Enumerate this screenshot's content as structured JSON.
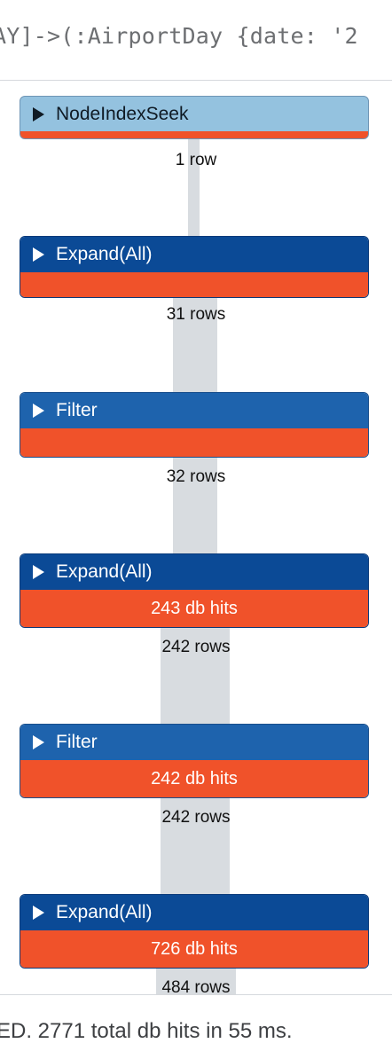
{
  "query": {
    "text": "AY]->(:AirportDay {date: '2"
  },
  "plan": {
    "operators": [
      {
        "label": "NodeIndexSeek",
        "db_hits": "",
        "rows": "1 row",
        "style": "light"
      },
      {
        "label": "Expand(All)",
        "db_hits": "",
        "rows": "31 rows",
        "style": "dark"
      },
      {
        "label": "Filter",
        "db_hits": "",
        "rows": "32 rows",
        "style": "mid"
      },
      {
        "label": "Expand(All)",
        "db_hits": "243 db hits",
        "rows": "242 rows",
        "style": "dark"
      },
      {
        "label": "Filter",
        "db_hits": "242 db hits",
        "rows": "242 rows",
        "style": "mid"
      },
      {
        "label": "Expand(All)",
        "db_hits": "726 db hits",
        "rows": "484 rows",
        "style": "dark"
      }
    ]
  },
  "status": {
    "summary": "ED. 2771 total db hits in 55 ms."
  },
  "colors": {
    "operator_light": "#94c2df",
    "operator_dark": "#0b4a96",
    "operator_mid": "#1e63ad",
    "db_hits_bar": "#f0522a",
    "pipe": "#d8dce0"
  }
}
